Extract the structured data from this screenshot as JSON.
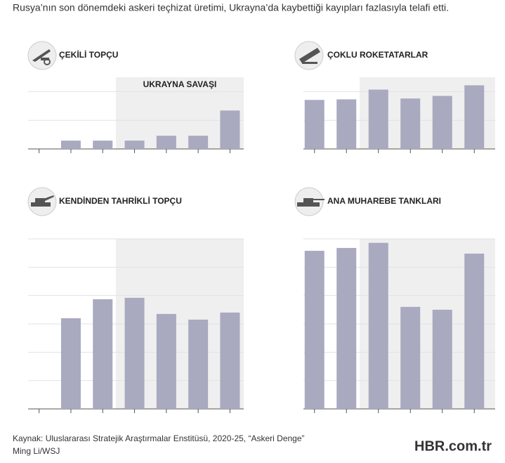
{
  "title": "Rusya’nın son dönemdeki askeri teçhizat üretimi, Ukrayna’da kaybettiği kayıpları fazlasıyla telafi etti.",
  "chart_data": [
    {
      "type": "bar",
      "title": "ÇEKİLİ TOPÇU",
      "annotation": "UKRAYNA SAVAŞI",
      "categories": [
        null,
        null,
        null,
        null,
        null,
        null,
        null
      ],
      "values": [
        null,
        0.29,
        0.29,
        0.29,
        0.46,
        0.46,
        1.34
      ],
      "color": "#a9a9bf",
      "highlight_start": 3,
      "highlight_color": "#efeff0",
      "ylim": [
        0,
        2.5
      ],
      "yticks": [
        0,
        1,
        2
      ],
      "grid": true
    },
    {
      "type": "bar",
      "title": "ÇOKLU ROKETATARLAR",
      "categories": [
        null,
        null,
        null,
        null,
        null,
        null
      ],
      "values": [
        1.71,
        1.73,
        2.07,
        1.76,
        1.85,
        2.22
      ],
      "color": "#a9a9bf",
      "highlight_start": 2,
      "highlight_color": "#efeff0",
      "ylim": [
        0,
        2.5
      ],
      "yticks": [
        0,
        1,
        2
      ],
      "grid": true
    },
    {
      "type": "bar",
      "title": "KENDİNDEN TAHRİKLİ TOPÇU",
      "categories": [
        null,
        null,
        null,
        null,
        null,
        null,
        null
      ],
      "values": [
        null,
        3.2,
        3.87,
        3.92,
        3.35,
        3.15,
        3.4
      ],
      "color": "#a9a9bf",
      "highlight_start": 3,
      "highlight_color": "#efeff0",
      "ylim": [
        0,
        6
      ],
      "yticks": [
        0,
        1,
        2,
        3,
        4,
        5,
        6
      ],
      "grid": true
    },
    {
      "type": "bar",
      "title": "ANA MUHAREBE TANKLARI",
      "categories": [
        null,
        null,
        null,
        null,
        null,
        null
      ],
      "values": [
        5.58,
        5.68,
        5.86,
        3.6,
        3.5,
        5.48
      ],
      "color": "#a9a9bf",
      "highlight_start": 2,
      "highlight_color": "#efeff0",
      "ylim": [
        0,
        6
      ],
      "yticks": [
        0,
        1,
        2,
        3,
        4,
        5,
        6
      ],
      "grid": true
    }
  ],
  "source": "Kaynak: Uluslararası Stratejik Araştırmalar Enstitüsü, 2020-25, “Askeri Denge”",
  "credit": "Ming Li/WSJ",
  "watermark": "HBR.com.tr"
}
